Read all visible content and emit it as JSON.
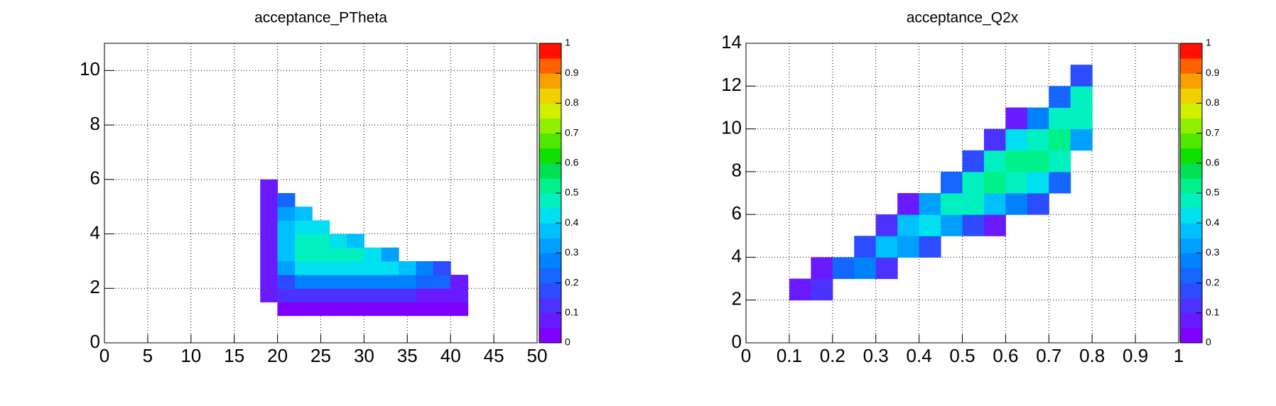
{
  "chart_data": [
    {
      "type": "heatmap",
      "title": "acceptance_PTheta",
      "xbins": [
        18,
        20,
        22,
        24,
        26,
        28,
        30,
        32,
        34,
        36,
        38,
        40,
        42
      ],
      "ybins": [
        1,
        1.5,
        2,
        2.5,
        3,
        3.5,
        4,
        4.5,
        5,
        5.5,
        6
      ],
      "values": [
        [
          null,
          0.02,
          0.02,
          0.02,
          0.02,
          0.02,
          0.02,
          0.02,
          0.02,
          0.02,
          0.02,
          0.02
        ],
        [
          0.05,
          0.1,
          0.1,
          0.1,
          0.1,
          0.1,
          0.1,
          0.1,
          0.1,
          0.05,
          0.05,
          0.05
        ],
        [
          0.05,
          0.15,
          0.25,
          0.25,
          0.25,
          0.25,
          0.25,
          0.25,
          0.25,
          0.2,
          0.2,
          0.05
        ],
        [
          0.05,
          0.3,
          0.4,
          0.4,
          0.4,
          0.4,
          0.4,
          0.4,
          0.35,
          0.25,
          0.15,
          null
        ],
        [
          0.05,
          0.35,
          0.45,
          0.45,
          0.45,
          0.45,
          0.4,
          0.3,
          null,
          null,
          null,
          null
        ],
        [
          0.05,
          0.35,
          0.45,
          0.45,
          0.4,
          0.35,
          null,
          null,
          null,
          null,
          null,
          null
        ],
        [
          0.05,
          0.35,
          0.4,
          0.4,
          null,
          null,
          null,
          null,
          null,
          null,
          null,
          null
        ],
        [
          0.05,
          0.3,
          0.35,
          null,
          null,
          null,
          null,
          null,
          null,
          null,
          null,
          null
        ],
        [
          0.05,
          0.2,
          null,
          null,
          null,
          null,
          null,
          null,
          null,
          null,
          null,
          null
        ],
        [
          0.05,
          null,
          null,
          null,
          null,
          null,
          null,
          null,
          null,
          null,
          null,
          null
        ]
      ],
      "xlim": [
        0,
        50
      ],
      "xticks": [
        0,
        5,
        10,
        15,
        20,
        25,
        30,
        35,
        40,
        45,
        50
      ],
      "ylim": [
        0,
        11
      ],
      "yticks": [
        0,
        2,
        4,
        6,
        8,
        10
      ],
      "zlim": [
        0,
        1
      ],
      "zticks": [
        0,
        0.1,
        0.2,
        0.3,
        0.4,
        0.5,
        0.6,
        0.7,
        0.8,
        0.9,
        1
      ],
      "grid": true
    },
    {
      "type": "heatmap",
      "title": "acceptance_Q2x",
      "xbins": [
        0.1,
        0.15,
        0.2,
        0.25,
        0.3,
        0.35,
        0.4,
        0.45,
        0.5,
        0.55,
        0.6,
        0.65,
        0.7,
        0.75,
        0.8
      ],
      "ybins": [
        2,
        3,
        4,
        5,
        6,
        7,
        8,
        9,
        10,
        11,
        12,
        13
      ],
      "values": [
        [
          0.05,
          0.1,
          null,
          null,
          null,
          null,
          null,
          null,
          null,
          null,
          null,
          null,
          null,
          null
        ],
        [
          null,
          0.05,
          0.2,
          0.25,
          0.1,
          null,
          null,
          null,
          null,
          null,
          null,
          null,
          null,
          null
        ],
        [
          null,
          null,
          null,
          0.15,
          0.35,
          0.3,
          0.15,
          null,
          null,
          null,
          null,
          null,
          null,
          null
        ],
        [
          null,
          null,
          null,
          null,
          0.1,
          0.35,
          0.4,
          0.3,
          0.15,
          0.05,
          null,
          null,
          null,
          null
        ],
        [
          null,
          null,
          null,
          null,
          null,
          0.05,
          0.3,
          0.45,
          0.45,
          0.35,
          0.25,
          0.15,
          null,
          null
        ],
        [
          null,
          null,
          null,
          null,
          null,
          null,
          null,
          0.2,
          0.45,
          0.5,
          0.45,
          0.4,
          0.2,
          null
        ],
        [
          null,
          null,
          null,
          null,
          null,
          null,
          null,
          null,
          0.15,
          0.45,
          0.5,
          0.5,
          0.45,
          null
        ],
        [
          null,
          null,
          null,
          null,
          null,
          null,
          null,
          null,
          null,
          0.1,
          0.4,
          0.45,
          0.5,
          0.3
        ],
        [
          null,
          null,
          null,
          null,
          null,
          null,
          null,
          null,
          null,
          null,
          0.05,
          0.25,
          0.45,
          0.45
        ],
        [
          null,
          null,
          null,
          null,
          null,
          null,
          null,
          null,
          null,
          null,
          null,
          null,
          0.2,
          0.45
        ],
        [
          null,
          null,
          null,
          null,
          null,
          null,
          null,
          null,
          null,
          null,
          null,
          null,
          null,
          0.15
        ]
      ],
      "xlim": [
        0,
        1
      ],
      "xticks": [
        0,
        0.1,
        0.2,
        0.3,
        0.4,
        0.5,
        0.6,
        0.7,
        0.8,
        0.9,
        1
      ],
      "ylim": [
        0,
        14
      ],
      "yticks": [
        0,
        2,
        4,
        6,
        8,
        10,
        12,
        14
      ],
      "zlim": [
        0,
        1
      ],
      "zticks": [
        0,
        0.1,
        0.2,
        0.3,
        0.4,
        0.5,
        0.6,
        0.7,
        0.8,
        0.9,
        1
      ],
      "grid": true
    }
  ],
  "palette": [
    "#7f00ff",
    "#6a1aff",
    "#4b32ff",
    "#2b4cff",
    "#1466ff",
    "#0082ff",
    "#00a0ff",
    "#00c0ff",
    "#00e0f0",
    "#00f0c0",
    "#00f08a",
    "#00e050",
    "#10e000",
    "#50e800",
    "#90f000",
    "#d0f000",
    "#f0d000",
    "#f8a000",
    "#ff6000",
    "#ff1000"
  ]
}
